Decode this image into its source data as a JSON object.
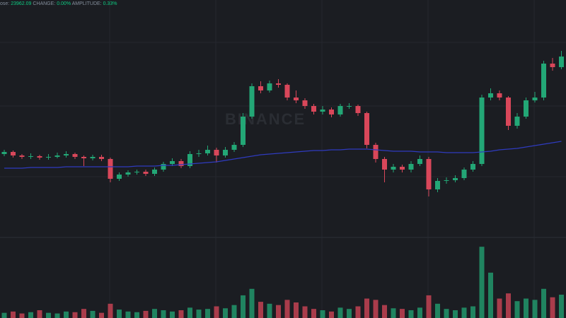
{
  "chart_data": {
    "type": "candlestick",
    "header": {
      "items": [
        {
          "label": "ose:",
          "value": "23962.09"
        },
        {
          "label": "CHANGE:",
          "value": "0.00%"
        },
        {
          "label": "AMPLITUDE:",
          "value": "0.33%"
        }
      ]
    },
    "watermark": "BINANCE",
    "up_color": "#23a776",
    "down_color": "#d9475a",
    "ma_color": "#2f3bbf",
    "ylim": [
      23745,
      24080
    ],
    "volume_ylim": [
      0,
      120
    ],
    "open": [
      23862,
      23865,
      23860,
      23858,
      23859,
      23857,
      23858,
      23860,
      23862,
      23858,
      23856,
      23858,
      23855,
      23827,
      23833,
      23836,
      23837,
      23834,
      23840,
      23848,
      23852,
      23845,
      23862,
      23863,
      23868,
      23860,
      23868,
      23875,
      23915,
      23958,
      23952,
      23962,
      23960,
      23942,
      23938,
      23930,
      23922,
      23925,
      23918,
      23930,
      23930,
      23920,
      23875,
      23855,
      23840,
      23844,
      23840,
      23848,
      23855,
      23812,
      23824,
      23825,
      23828,
      23840,
      23848,
      23942,
      23948,
      23942,
      23902,
      23915,
      23938,
      23942,
      23990,
      23985
    ],
    "high": [
      23868,
      23867,
      23862,
      23863,
      23861,
      23862,
      23864,
      23866,
      23864,
      23860,
      23861,
      23861,
      23857,
      23836,
      23839,
      23840,
      23840,
      23843,
      23851,
      23856,
      23855,
      23866,
      23868,
      23874,
      23871,
      23872,
      23879,
      23920,
      23962,
      23965,
      23966,
      23968,
      23962,
      23952,
      23941,
      23933,
      23930,
      23928,
      23933,
      23934,
      23932,
      23922,
      23878,
      23858,
      23848,
      23847,
      23852,
      23860,
      23858,
      23828,
      23829,
      23832,
      23843,
      23852,
      23946,
      23955,
      23952,
      23944,
      23920,
      23942,
      23950,
      23994,
      23998,
      24008
    ],
    "low": [
      23859,
      23857,
      23855,
      23855,
      23854,
      23854,
      23856,
      23857,
      23855,
      23845,
      23853,
      23852,
      23822,
      23824,
      23830,
      23833,
      23831,
      23831,
      23837,
      23845,
      23842,
      23842,
      23858,
      23860,
      23850,
      23857,
      23865,
      23872,
      23912,
      23948,
      23949,
      23956,
      23938,
      23934,
      23926,
      23918,
      23918,
      23914,
      23915,
      23926,
      23916,
      23870,
      23850,
      23822,
      23836,
      23836,
      23836,
      23845,
      23802,
      23808,
      23820,
      23822,
      23825,
      23837,
      23845,
      23938,
      23938,
      23896,
      23898,
      23912,
      23935,
      23938,
      23980,
      23982
    ],
    "close": [
      23865,
      23860,
      23858,
      23859,
      23857,
      23858,
      23860,
      23862,
      23858,
      23856,
      23858,
      23855,
      23827,
      23833,
      23836,
      23837,
      23834,
      23840,
      23848,
      23852,
      23845,
      23862,
      23863,
      23868,
      23860,
      23868,
      23875,
      23915,
      23958,
      23952,
      23962,
      23960,
      23942,
      23938,
      23930,
      23922,
      23925,
      23918,
      23930,
      23930,
      23920,
      23875,
      23855,
      23840,
      23844,
      23840,
      23848,
      23855,
      23812,
      23824,
      23825,
      23828,
      23840,
      23848,
      23942,
      23948,
      23942,
      23902,
      23915,
      23938,
      23942,
      23990,
      23985,
      24000
    ],
    "ma": [
      23842,
      23842,
      23842,
      23843,
      23843,
      23843,
      23843,
      23844,
      23844,
      23844,
      23844,
      23844,
      23844,
      23844,
      23844,
      23845,
      23845,
      23845,
      23846,
      23846,
      23847,
      23848,
      23849,
      23850,
      23851,
      23853,
      23855,
      23857,
      23859,
      23861,
      23862,
      23863,
      23864,
      23865,
      23866,
      23867,
      23867,
      23868,
      23868,
      23869,
      23869,
      23869,
      23868,
      23867,
      23866,
      23866,
      23866,
      23865,
      23865,
      23865,
      23864,
      23864,
      23864,
      23864,
      23865,
      23866,
      23868,
      23869,
      23870,
      23872,
      23874,
      23876,
      23878,
      23880
    ],
    "volume": [
      8,
      10,
      7,
      9,
      12,
      8,
      7,
      10,
      9,
      14,
      11,
      8,
      22,
      13,
      10,
      9,
      11,
      14,
      12,
      10,
      12,
      16,
      13,
      14,
      18,
      15,
      20,
      35,
      45,
      25,
      22,
      20,
      28,
      24,
      18,
      14,
      12,
      10,
      16,
      14,
      18,
      30,
      28,
      20,
      15,
      14,
      12,
      16,
      35,
      22,
      14,
      12,
      16,
      18,
      110,
      70,
      30,
      38,
      26,
      30,
      28,
      45,
      32,
      36
    ]
  }
}
